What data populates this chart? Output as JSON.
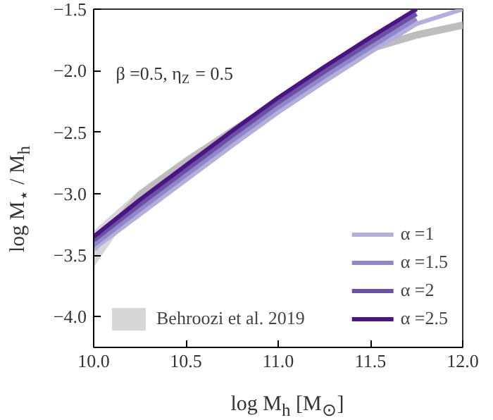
{
  "chart_data": {
    "type": "line",
    "x": [
      10.0,
      10.25,
      10.5,
      10.75,
      11.0,
      11.25,
      11.5,
      11.75,
      12.0
    ],
    "xlabel": "log M$_{h}$ [M$_{⊙}$]",
    "ylabel": "log M$_{⋆}$ / M$_{h}$",
    "annotations": [
      "β =0.5, η$_{Z}$ = 0.5"
    ],
    "series": [
      {
        "name": "Behroozi et al. 2019",
        "type": "line",
        "color": "#bdbdbd",
        "values": [
          -3.45,
          -3.01,
          -2.74,
          -2.49,
          -2.25,
          -2.01,
          -1.82,
          -1.71,
          -1.63
        ],
        "lower": [
          -3.6,
          -3.05,
          -2.78,
          -2.52,
          -2.28,
          -2.04,
          -1.85,
          -1.74,
          -1.66
        ],
        "upper": [
          -3.3,
          -2.97,
          -2.7,
          -2.46,
          -2.22,
          -1.98,
          -1.79,
          -1.68,
          -1.6
        ]
      },
      {
        "name": "α =1",
        "color": "#b3afdb",
        "values": [
          -3.45,
          -3.17,
          -2.89,
          -2.61,
          -2.34,
          -2.09,
          -1.85,
          -1.62,
          -1.5
        ]
      },
      {
        "name": "α =1.5",
        "color": "#8f87cc",
        "values": [
          -3.42,
          -3.13,
          -2.85,
          -2.57,
          -2.3,
          -2.05,
          -1.81,
          -1.58,
          null
        ]
      },
      {
        "name": "α =2",
        "color": "#6a51a3",
        "values": [
          -3.38,
          -3.09,
          -2.81,
          -2.53,
          -2.26,
          -2.01,
          -1.77,
          -1.54,
          null
        ]
      },
      {
        "name": "α =2.5",
        "color": "#4a1486",
        "values": [
          -3.35,
          -3.05,
          -2.77,
          -2.49,
          -2.22,
          -1.97,
          -1.73,
          -1.5,
          null
        ]
      }
    ],
    "xlim": [
      10.0,
      12.0
    ],
    "ylim": [
      -4.25,
      -1.5
    ],
    "xticks": [
      {
        "value": 10.0,
        "label": "10.0"
      },
      10.5,
      {
        "value": 11.0,
        "label": "11.0"
      },
      11.5,
      {
        "value": 12.0,
        "label": "12.0"
      }
    ],
    "yticks": [
      {
        "value": -4.0,
        "label": "−4.0"
      },
      {
        "value": -3.5,
        "label": "−3.5"
      },
      {
        "value": -3.0,
        "label": "−3.0"
      },
      {
        "value": -2.5,
        "label": "−2.5"
      },
      {
        "value": -2.0,
        "label": "−2.0"
      },
      {
        "value": -1.5,
        "label": "−1.5"
      }
    ],
    "grid": false,
    "legend": "bottom right",
    "line_style": "solid"
  }
}
